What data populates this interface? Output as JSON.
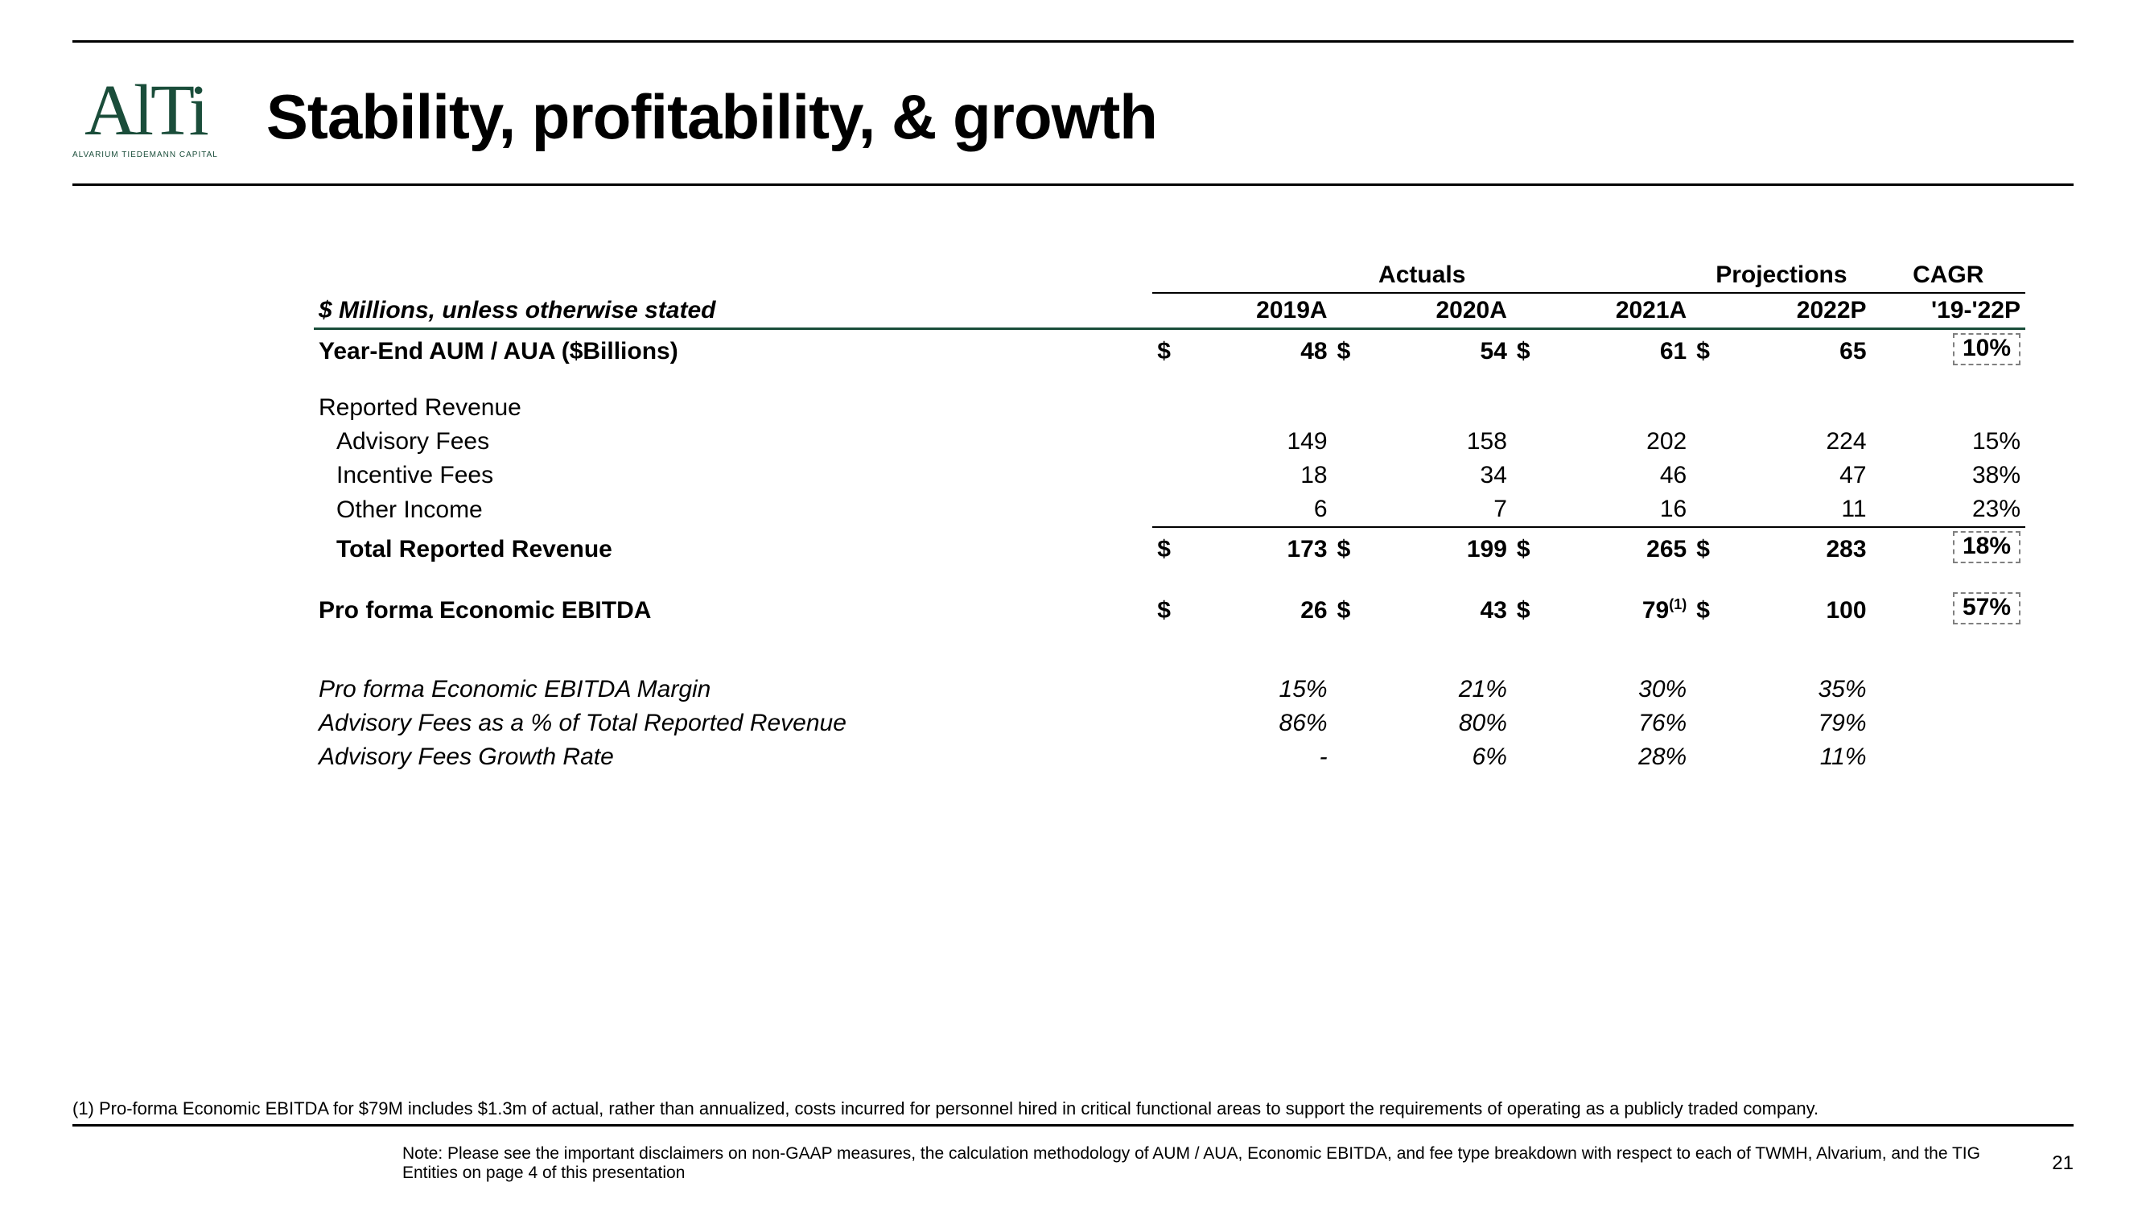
{
  "colors": {
    "brand": "#1a4d3a",
    "text": "#000000",
    "dash": "#808080"
  },
  "logo": {
    "text": "AlTi",
    "sub": "ALVARIUM TIEDEMANN CAPITAL"
  },
  "title": "Stability, profitability, & growth",
  "table": {
    "group_headers": {
      "actuals": "Actuals",
      "projections": "Projections",
      "cagr": "CAGR"
    },
    "subhead_label": "$ Millions, unless otherwise stated",
    "columns": [
      "2019A",
      "2020A",
      "2021A",
      "2022P",
      "'19-'22P"
    ],
    "rows": {
      "aum": {
        "label": "Year-End AUM / AUA ($Billions)",
        "vals": [
          "48",
          "54",
          "61",
          "65"
        ],
        "cagr": "10%",
        "currency": true,
        "dashed": true
      },
      "reported_rev_header": {
        "label": "Reported Revenue"
      },
      "advisory": {
        "label": "Advisory Fees",
        "vals": [
          "149",
          "158",
          "202",
          "224"
        ],
        "cagr": "15%"
      },
      "incentive": {
        "label": "Incentive Fees",
        "vals": [
          "18",
          "34",
          "46",
          "47"
        ],
        "cagr": "38%"
      },
      "other": {
        "label": "Other Income",
        "vals": [
          "6",
          "7",
          "16",
          "11"
        ],
        "cagr": "23%"
      },
      "total_rev": {
        "label": "Total Reported Revenue",
        "vals": [
          "173",
          "199",
          "265",
          "283"
        ],
        "cagr": "18%",
        "currency": true,
        "dashed": true
      },
      "ebitda": {
        "label": "Pro forma Economic EBITDA",
        "vals": [
          "26",
          "43",
          "79",
          "100"
        ],
        "sup_on": 2,
        "sup": "(1)",
        "cagr": "57%",
        "currency": true,
        "dashed": true
      },
      "margin": {
        "label": "Pro forma Economic EBITDA Margin",
        "vals": [
          "15%",
          "21%",
          "30%",
          "35%"
        ]
      },
      "adv_pct": {
        "label": "Advisory Fees as a % of Total Reported Revenue",
        "vals": [
          "86%",
          "80%",
          "76%",
          "79%"
        ]
      },
      "adv_growth": {
        "label": "Advisory Fees Growth Rate",
        "vals": [
          "-",
          "6%",
          "28%",
          "11%"
        ]
      }
    }
  },
  "footnote": "(1) Pro-forma Economic EBITDA for $79M includes $1.3m of actual, rather than annualized, costs incurred for personnel hired in critical functional areas to support the requirements of operating as a publicly traded company.",
  "bottom_note": "Note: Please see the important disclaimers on non-GAAP measures, the calculation methodology of AUM / AUA, Economic EBITDA, and fee type breakdown with respect to each of TWMH, Alvarium, and the TIG Entities on page 4 of this presentation",
  "page_number": "21"
}
